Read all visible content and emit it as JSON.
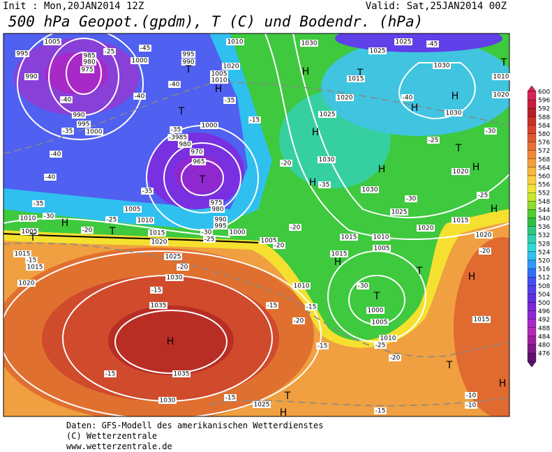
{
  "header": {
    "init": "Init : Mon,20JAN2014 12Z",
    "valid": "Valid: Sat,25JAN2014 00Z",
    "title": "500 hPa Geopot.(gpdm), T (C) und Bodendr. (hPa)"
  },
  "footer": [
    "Daten: GFS-Modell des amerikanischen Wetterdienstes",
    "(C) Wetterzentrale",
    "www.wetterzentrale.de"
  ],
  "colorbar": {
    "levels": [
      600,
      596,
      592,
      588,
      584,
      580,
      576,
      572,
      568,
      564,
      560,
      556,
      552,
      548,
      544,
      540,
      536,
      532,
      528,
      524,
      520,
      516,
      512,
      508,
      504,
      500,
      496,
      492,
      488,
      484,
      480,
      476
    ],
    "colors": [
      "#d9245a",
      "#c81e3c",
      "#b81e28",
      "#c83228",
      "#d8442c",
      "#e05a30",
      "#e87034",
      "#f08838",
      "#f4a03c",
      "#f8b840",
      "#f8d040",
      "#f0e438",
      "#c8e830",
      "#90dc30",
      "#50cc30",
      "#30c040",
      "#30c880",
      "#30d0b0",
      "#30d8d8",
      "#30c0f0",
      "#3098f8",
      "#3070f8",
      "#4050f0",
      "#5040e8",
      "#6030e0",
      "#7828d8",
      "#9028d0",
      "#a828c8",
      "#b828b8",
      "#a020a0",
      "#801888",
      "#601070"
    ]
  },
  "map_labels": [
    "1005",
    "995",
    "985",
    "980",
    "975",
    "990",
    "-25",
    "-45",
    "1000",
    "995",
    "990",
    "T",
    "1010",
    "1020",
    "1005",
    "1010",
    "H",
    "-40",
    "-40",
    "-40",
    "-35",
    "990",
    "995",
    "1000",
    "-35",
    "T",
    "-15",
    "1000",
    "-35",
    "-3985",
    "980",
    "970",
    "965",
    "T",
    "-40",
    "-40",
    "-35",
    "975",
    "980",
    "990",
    "995",
    "-35",
    "1005",
    "-30",
    "1010",
    "H",
    "-25",
    "1010",
    "-20",
    "T",
    "1005",
    "T",
    "1015",
    "1000",
    "-30",
    "-25",
    "1020",
    "1005",
    "-20",
    "1015",
    "-15",
    "1025",
    "1015",
    "-20",
    "1030",
    "1020",
    "-15",
    "1010",
    "-15",
    "1035",
    "-15",
    "H",
    "-15",
    "1035",
    "1030",
    "-15",
    "1025",
    "T",
    "H",
    "-15",
    "-15",
    "-20",
    "1030",
    "1025",
    "1025",
    "-45",
    "H",
    "T",
    "1015",
    "1030",
    "-40",
    "H",
    "H",
    "1020",
    "1030",
    "1025",
    "H",
    "-30",
    "T",
    "-25",
    "1030",
    "-20",
    "H",
    "H",
    "1020",
    "H",
    "-35",
    "1030",
    "-30",
    "1025",
    "-25",
    "H",
    "1020",
    "1015",
    "-20",
    "1015",
    "1010",
    "1005",
    "1015",
    "H",
    "-20",
    "T",
    "H",
    "-30",
    "T",
    "1000",
    "1005",
    "1010",
    "-25",
    "1015",
    "-20",
    "T",
    "H",
    "-10",
    "-10",
    "1020",
    "T",
    "1010",
    "1020"
  ]
}
